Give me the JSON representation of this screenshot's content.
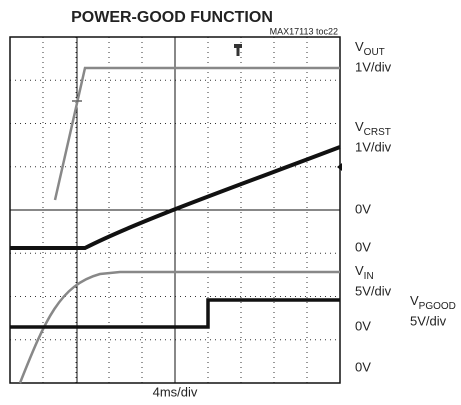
{
  "title": "POWER-GOOD FUNCTION",
  "figure_id": "MAX17113 toc22",
  "channels": [
    {
      "name": {
        "main": "V",
        "sub": "OUT"
      },
      "scale": "1V/div"
    },
    {
      "name": {
        "main": "V",
        "sub": "CRST"
      },
      "scale": "1V/div"
    },
    {
      "name": {
        "main": "V",
        "sub": "IN"
      },
      "scale": "5V/div"
    },
    {
      "name": {
        "main": "V",
        "sub": "PGOOD"
      },
      "scale": "5V/div"
    }
  ],
  "zero_labels": [
    "0V",
    "0V",
    "0V",
    "0V"
  ],
  "time_scale": "4ms/div"
}
